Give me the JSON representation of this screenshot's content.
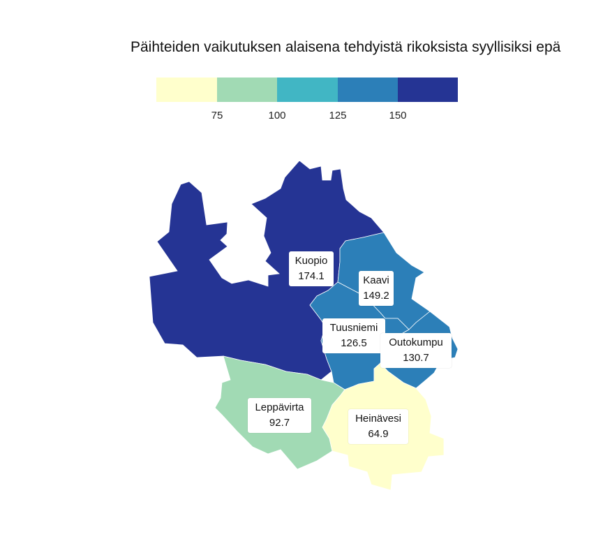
{
  "title": "Päihteiden vaikutuksen alaisena tehdyistä rikoksista syyllisiksi epä",
  "legend": {
    "colors": [
      "#ffffcc",
      "#a1dab4",
      "#41b6c4",
      "#2c7fb8",
      "#253494"
    ],
    "ticks": [
      "75",
      "100",
      "125",
      "150"
    ]
  },
  "regions": [
    {
      "name": "Kuopio",
      "value": "174.1",
      "color": "#253494"
    },
    {
      "name": "Kaavi",
      "value": "149.2",
      "color": "#2c7fb8"
    },
    {
      "name": "Tuusniemi",
      "value": "126.5",
      "color": "#2c7fb8"
    },
    {
      "name": "Outokumpu",
      "value": "130.7",
      "color": "#2c7fb8"
    },
    {
      "name": "Leppävirta",
      "value": "92.7",
      "color": "#a1dab4"
    },
    {
      "name": "Heinävesi",
      "value": "64.9",
      "color": "#ffffcc"
    }
  ]
}
